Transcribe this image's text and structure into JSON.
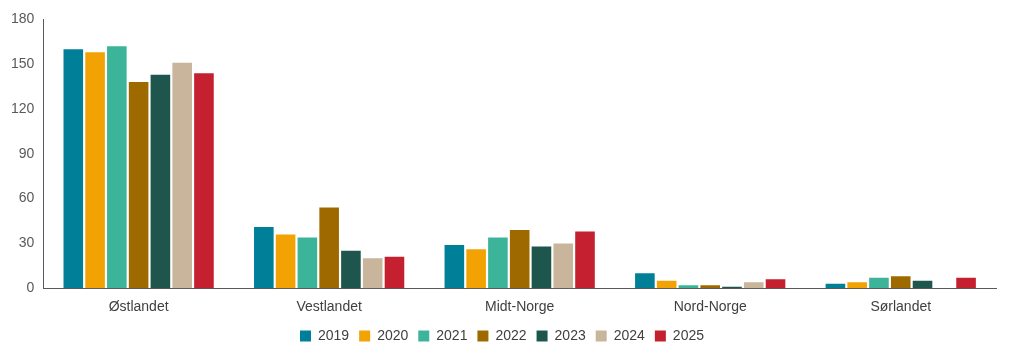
{
  "chart_data": {
    "type": "bar",
    "categories": [
      "Østlandet",
      "Vestlandet",
      "Midt-Norge",
      "Nord-Norge",
      "Sørlandet"
    ],
    "series": [
      {
        "name": "2019",
        "color": "#007f99",
        "values": [
          160,
          41,
          29,
          10,
          3
        ]
      },
      {
        "name": "2020",
        "color": "#f2a303",
        "values": [
          158,
          36,
          26,
          5,
          4
        ]
      },
      {
        "name": "2021",
        "color": "#3cb49a",
        "values": [
          162,
          34,
          34,
          2,
          7
        ]
      },
      {
        "name": "2022",
        "color": "#9e6a00",
        "values": [
          138,
          54,
          39,
          2,
          8
        ]
      },
      {
        "name": "2023",
        "color": "#1e564e",
        "values": [
          143,
          25,
          28,
          1,
          5
        ]
      },
      {
        "name": "2024",
        "color": "#c9b59c",
        "values": [
          151,
          20,
          30,
          4,
          0
        ]
      },
      {
        "name": "2025",
        "color": "#c42030",
        "values": [
          144,
          21,
          38,
          6,
          7
        ]
      }
    ],
    "ylim": [
      0,
      180
    ],
    "yticks": [
      0,
      30,
      60,
      90,
      120,
      150,
      180
    ],
    "grid": false,
    "legend": "bottom"
  }
}
